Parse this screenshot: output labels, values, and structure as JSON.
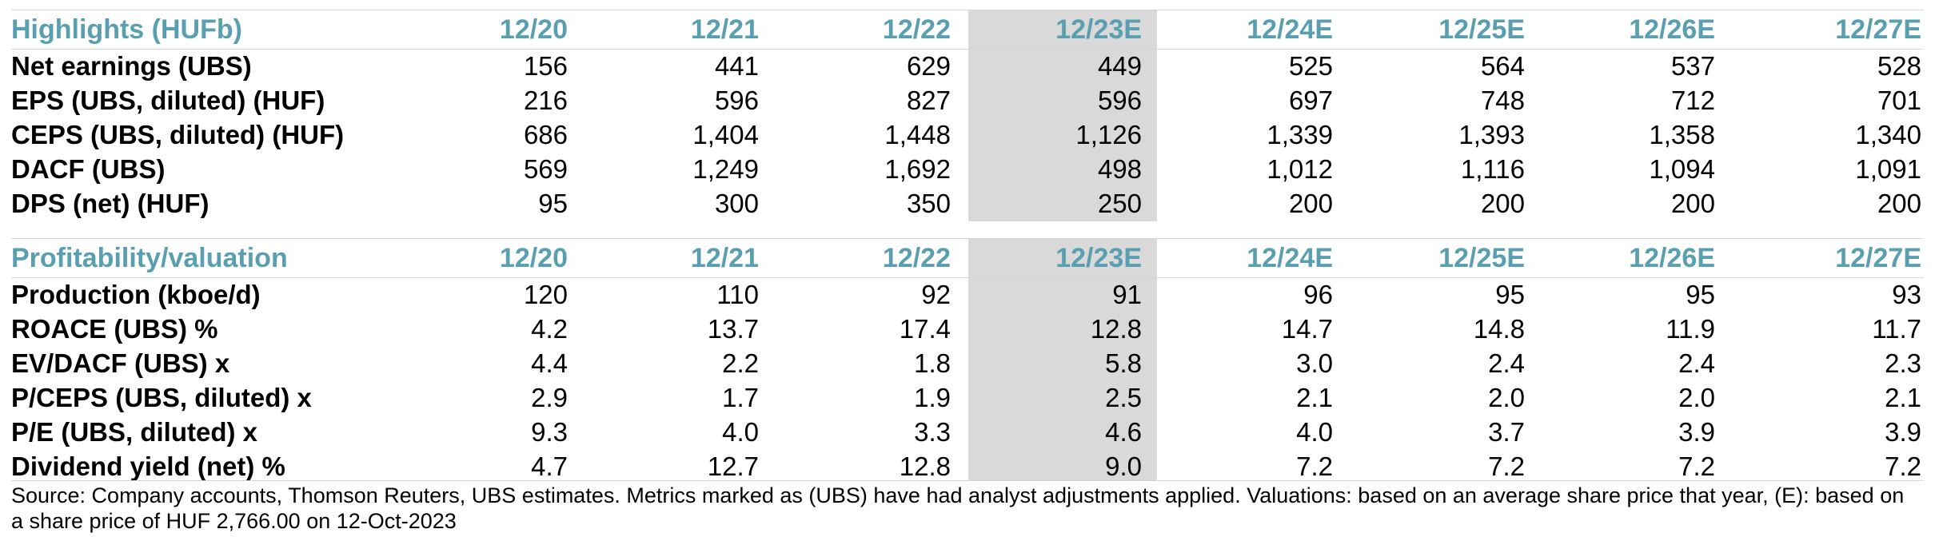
{
  "columns": [
    "12/20",
    "12/21",
    "12/22",
    "12/23E",
    "12/24E",
    "12/25E",
    "12/26E",
    "12/27E"
  ],
  "highlights": {
    "title": "Highlights (HUFb)",
    "rows": [
      {
        "label": "Net earnings (UBS)",
        "values": [
          "156",
          "441",
          "629",
          "449",
          "525",
          "564",
          "537",
          "528"
        ]
      },
      {
        "label": "EPS (UBS, diluted) (HUF)",
        "values": [
          "216",
          "596",
          "827",
          "596",
          "697",
          "748",
          "712",
          "701"
        ]
      },
      {
        "label": "CEPS (UBS, diluted) (HUF)",
        "values": [
          "686",
          "1,404",
          "1,448",
          "1,126",
          "1,339",
          "1,393",
          "1,358",
          "1,340"
        ]
      },
      {
        "label": "DACF (UBS)",
        "values": [
          "569",
          "1,249",
          "1,692",
          "498",
          "1,012",
          "1,116",
          "1,094",
          "1,091"
        ]
      },
      {
        "label": "DPS (net) (HUF)",
        "values": [
          "95",
          "300",
          "350",
          "250",
          "200",
          "200",
          "200",
          "200"
        ]
      }
    ]
  },
  "profitability": {
    "title": "Profitability/valuation",
    "rows": [
      {
        "label": "Production (kboe/d)",
        "values": [
          "120",
          "110",
          "92",
          "91",
          "96",
          "95",
          "95",
          "93"
        ]
      },
      {
        "label": "ROACE (UBS) %",
        "values": [
          "4.2",
          "13.7",
          "17.4",
          "12.8",
          "14.7",
          "14.8",
          "11.9",
          "11.7"
        ]
      },
      {
        "label": "EV/DACF (UBS) x",
        "values": [
          "4.4",
          "2.2",
          "1.8",
          "5.8",
          "3.0",
          "2.4",
          "2.4",
          "2.3"
        ]
      },
      {
        "label": "P/CEPS (UBS, diluted) x",
        "values": [
          "2.9",
          "1.7",
          "1.9",
          "2.5",
          "2.1",
          "2.0",
          "2.0",
          "2.1"
        ]
      },
      {
        "label": "P/E (UBS, diluted) x",
        "values": [
          "9.3",
          "4.0",
          "3.3",
          "4.6",
          "4.0",
          "3.7",
          "3.9",
          "3.9"
        ]
      },
      {
        "label": "Dividend yield (net) %",
        "values": [
          "4.7",
          "12.7",
          "12.8",
          "9.0",
          "7.2",
          "7.2",
          "7.2",
          "7.2"
        ]
      }
    ]
  },
  "colors": {
    "header_text": "#5a9fb0",
    "highlight_column": "#d9d9d9"
  },
  "source_note": "Source: Company accounts, Thomson Reuters, UBS estimates. Metrics marked as (UBS) have had analyst adjustments applied. Valuations: based on an average share price that year, (E): based on a share price of HUF 2,766.00 on 12-Oct-2023"
}
